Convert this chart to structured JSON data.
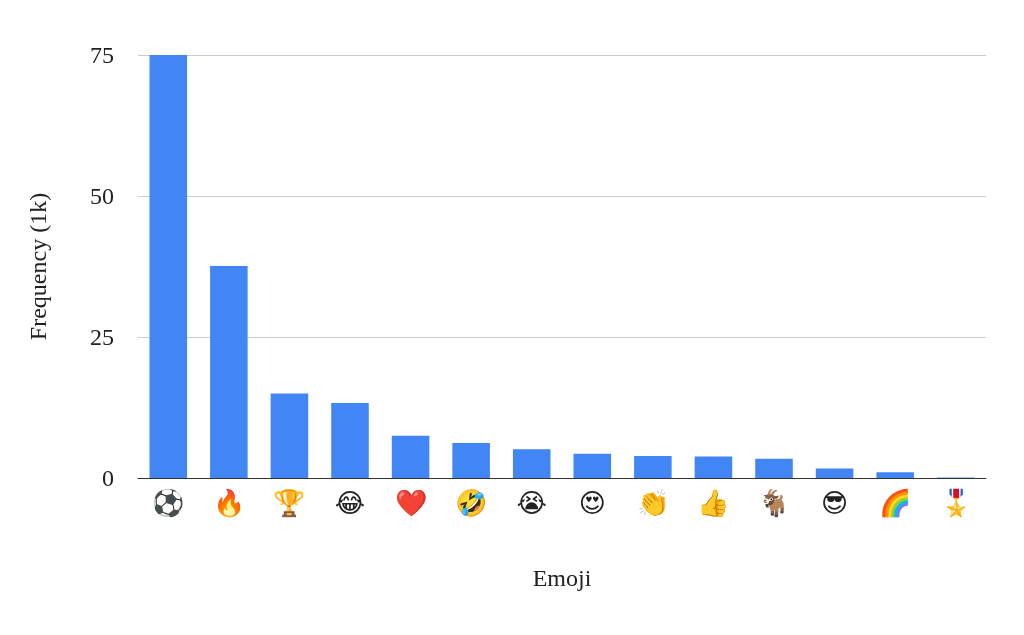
{
  "chart_data": {
    "type": "bar",
    "xlabel": "Emoji",
    "ylabel": "Frequency (1k)",
    "categories": [
      "⚽",
      "🔥",
      "🏆",
      "😂",
      "❤️",
      "🤣",
      "😭",
      "😍",
      "👏",
      "👍",
      "🐐",
      "😎",
      "🌈",
      "🎖️"
    ],
    "values": [
      75,
      37.6,
      15,
      13.3,
      7.5,
      6.2,
      5.1,
      4.3,
      3.9,
      3.8,
      3.4,
      1.7,
      1,
      0.1
    ],
    "color": "#4285f4",
    "ylim": [
      0,
      75
    ],
    "yticks": [
      0,
      25,
      50,
      75
    ],
    "grid": "y"
  }
}
